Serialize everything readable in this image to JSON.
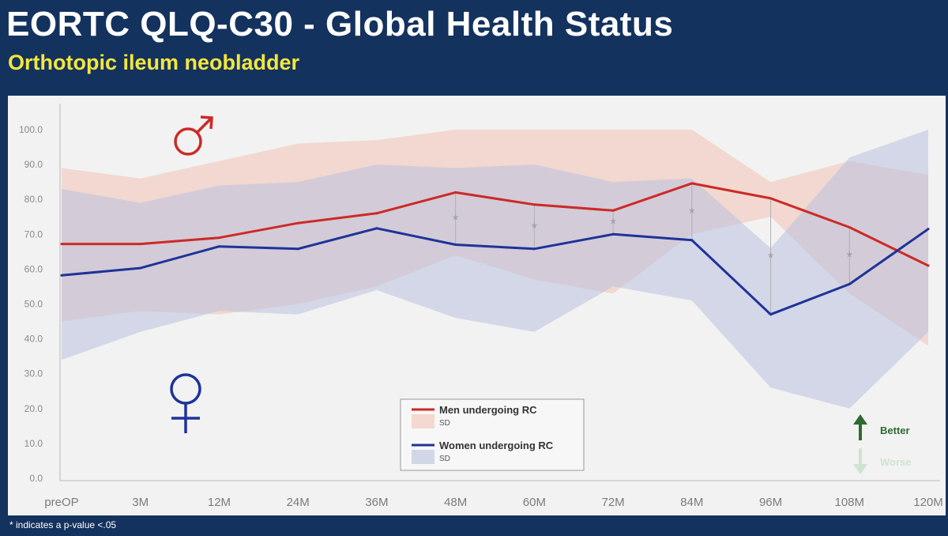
{
  "header": {
    "title": "EORTC QLQ-C30 - Global Health Status",
    "subtitle": "Orthotopic ileum neobladder"
  },
  "footnote": "* indicates a p-value <.05",
  "colors": {
    "men": "#cc2a26",
    "women": "#1e3399",
    "men_sd": "#f3c3b4",
    "women_sd": "#b9c1de",
    "better": "#2e6b2e",
    "worse": "#cfe3cf"
  },
  "icons": {
    "male": "male-symbol-icon",
    "female": "female-symbol-icon",
    "better": "arrow-up-icon",
    "worse": "arrow-down-icon"
  },
  "chart_data": {
    "type": "line",
    "title": "EORTC QLQ-C30 - Global Health Status",
    "subtitle": "Orthotopic ileum neobladder",
    "categories": [
      "preOP",
      "3M",
      "12M",
      "24M",
      "36M",
      "48M",
      "60M",
      "72M",
      "84M",
      "96M",
      "108M",
      "120M"
    ],
    "y_ticks": [
      "0.0",
      "10.0",
      "20.0",
      "30.0",
      "40.0",
      "50.0",
      "60.0",
      "70.0",
      "80.0",
      "90.0",
      "100.0"
    ],
    "ylim": [
      0,
      100
    ],
    "grid": false,
    "series": [
      {
        "name": "Men undergoing RC",
        "color": "#cc2a26",
        "values": [
          67.2,
          67.2,
          69.0,
          73.2,
          76.0,
          82.0,
          78.5,
          76.8,
          84.6,
          80.3,
          72.0,
          61.0
        ],
        "sd_upper": [
          89.0,
          86.0,
          91.0,
          96.0,
          97.0,
          100.0,
          100.0,
          100.0,
          100.0,
          85.0,
          91.0,
          87.0
        ],
        "sd_lower": [
          45.0,
          48.0,
          47.0,
          50.0,
          55.0,
          64.0,
          57.0,
          53.0,
          70.0,
          75.0,
          53.0,
          38.0
        ]
      },
      {
        "name": "Women undergoing RC",
        "color": "#1e3399",
        "values": [
          58.2,
          60.3,
          66.5,
          65.8,
          71.7,
          67.0,
          65.8,
          70.0,
          68.3,
          47.0,
          55.7,
          71.5
        ],
        "sd_upper": [
          83.0,
          79.0,
          84.0,
          85.0,
          90.0,
          89.0,
          90.0,
          85.0,
          86.0,
          66.0,
          92.0,
          100.0
        ],
        "sd_lower": [
          34.0,
          42.0,
          48.0,
          47.0,
          54.0,
          46.0,
          42.0,
          55.0,
          51.0,
          26.0,
          20.0,
          42.0
        ]
      }
    ],
    "significance_marker": "*",
    "significant_categories": [
      "48M",
      "60M",
      "72M",
      "84M",
      "96M",
      "108M"
    ],
    "legend": {
      "placement": "bottom-center",
      "men_label": "Men undergoing RC",
      "women_label": "Women undergoing RC",
      "sd_label": "SD"
    },
    "direction_indicator": {
      "better": "Better",
      "worse": "Worse"
    }
  }
}
